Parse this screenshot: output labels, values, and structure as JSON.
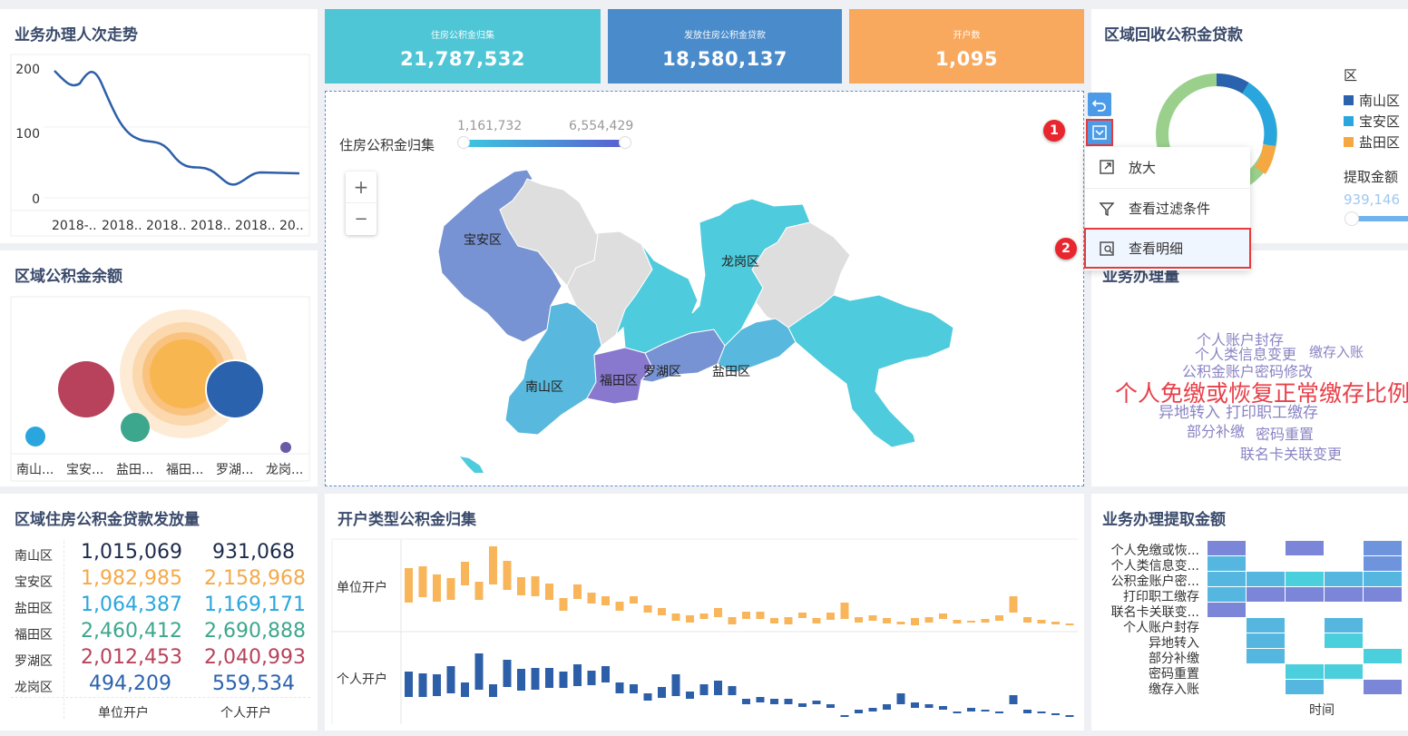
{
  "panels": {
    "trend_title": "业务办理人次走势",
    "balance_title": "区域公积金余额",
    "recover_title": "区域回收公积金贷款",
    "handle_title": "业务办理量",
    "loan_title": "区域住房公积金贷款发放量",
    "opentype_title": "开户类型公积金归集",
    "withdraw_title": "业务办理提取金额"
  },
  "kpis": [
    {
      "label": "住房公积金归集",
      "value": "21,787,532",
      "color": "#4fc6d6"
    },
    {
      "label": "发放住房公积金贷款",
      "value": "18,580,137",
      "color": "#4a8ccb"
    },
    {
      "label": "开户数",
      "value": "1,095",
      "color": "#f9a95d"
    }
  ],
  "trend_chart": {
    "y_ticks": [
      "200",
      "100",
      "0"
    ],
    "x_ticks": [
      "2018-..",
      "2018..",
      "2018..",
      "2018..",
      "2018..",
      "20.."
    ]
  },
  "bubble_chart": {
    "x_ticks": [
      "南山...",
      "宝安...",
      "盐田...",
      "福田...",
      "罗湖...",
      "龙岗..."
    ]
  },
  "map": {
    "legend_title": "住房公积金归集",
    "range_min": "1,161,732",
    "range_max": "6,554,429",
    "zoom_in": "+",
    "zoom_out": "−",
    "districts": [
      "宝安区",
      "龙岗区",
      "南山区",
      "福田区",
      "罗湖区",
      "盐田区"
    ]
  },
  "menu": {
    "items": [
      "放大",
      "查看过滤条件",
      "查看明细"
    ],
    "badge1": "1",
    "badge2": "2"
  },
  "recover": {
    "legend_title": "区",
    "legend_items": [
      {
        "name": "南山区",
        "color": "#2a62ae"
      },
      {
        "name": "宝安区",
        "color": "#29a6dd"
      },
      {
        "name": "盐田区",
        "color": "#f5a842"
      }
    ],
    "slider_title": "提取金额",
    "slider_value": "939,146"
  },
  "wordcloud": [
    {
      "text": "个人账户封存",
      "color": "#8a84c4"
    },
    {
      "text": "个人类信息变更",
      "color": "#8a84c4"
    },
    {
      "text": "缴存入账",
      "color": "#8a84c4"
    },
    {
      "text": "公积金账户密码修改",
      "color": "#8a84c4"
    },
    {
      "text": "个人免缴或恢复正常缴存比例",
      "color": "#e8404a"
    },
    {
      "text": "异地转入",
      "color": "#8a84c4"
    },
    {
      "text": "打印职工缴存",
      "color": "#8a84c4"
    },
    {
      "text": "部分补缴",
      "color": "#8a84c4"
    },
    {
      "text": "密码重置",
      "color": "#8a84c4"
    },
    {
      "text": "联名卡关联变更",
      "color": "#8a84c4"
    }
  ],
  "loan_table": {
    "rows": [
      {
        "name": "南山区",
        "unit": "1,015,069",
        "person": "931,068",
        "color": "#1d2b4c"
      },
      {
        "name": "宝安区",
        "unit": "1,982,985",
        "person": "2,158,968",
        "color": "#f4a94a"
      },
      {
        "name": "盐田区",
        "unit": "1,064,387",
        "person": "1,169,171",
        "color": "#29a6dd"
      },
      {
        "name": "福田区",
        "unit": "2,460,412",
        "person": "2,690,888",
        "color": "#3ca78c"
      },
      {
        "name": "罗湖区",
        "unit": "2,012,453",
        "person": "2,040,993",
        "color": "#b8425c"
      },
      {
        "name": "龙岗区",
        "unit": "494,209",
        "person": "559,534",
        "color": "#2a62ae"
      }
    ],
    "col_unit": "单位开户",
    "col_person": "个人开户"
  },
  "opentype": {
    "row1": "单位开户",
    "row2": "个人开户"
  },
  "heatmap": {
    "rows": [
      "个人免缴或恢...",
      "个人类信息变...",
      "公积金账户密...",
      "打印职工缴存",
      "联名卡关联变...",
      "个人账户封存",
      "异地转入",
      "部分补缴",
      "密码重置",
      "缴存入账"
    ],
    "xlabel": "时间"
  }
}
